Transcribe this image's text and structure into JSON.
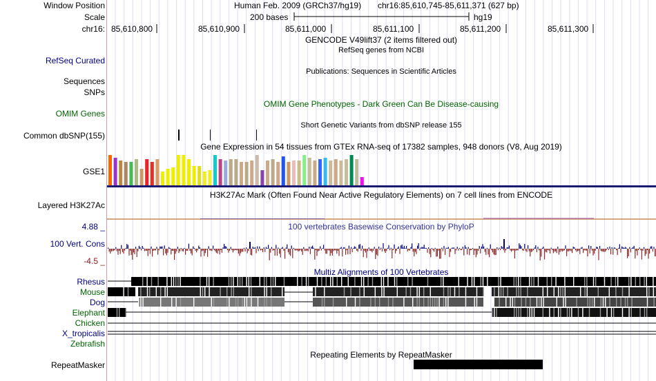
{
  "labels": {
    "window_position": "Window Position",
    "scale": "Scale",
    "chrom": "chr16:",
    "refseq": "RefSeq Curated",
    "sequences": "Sequences",
    "snps": "SNPs",
    "omim": "OMIM Genes",
    "dbsnp": "Common dbSNP(155)",
    "gse1": "GSE1",
    "h3k27ac": "Layered H3K27Ac",
    "cons_max": "4.88 _",
    "cons_label": "100 Vert. Cons",
    "cons_min": "-4.5 _"
  },
  "header": {
    "assembly": "Human Feb. 2009 (GRCh37/hg19)",
    "position": "chr16:85,610,745-85,611,371 (627 bp)",
    "scale_text": "200 bases",
    "scale_db": "hg19"
  },
  "ruler": {
    "ticks": [
      "85,610,800",
      "85,610,900",
      "85,611,000",
      "85,611,100",
      "85,611,200",
      "85,611,300"
    ]
  },
  "tracks": {
    "gencode": "GENCODE V49lift37 (2 items filtered out)",
    "refseq": "RefSeq genes from NCBI",
    "publications": "Publications: Sequences in Scientific Articles",
    "omim": "OMIM Gene Phenotypes - Dark Green Can Be Disease-causing",
    "dbsnp": "Short Genetic Variants from dbSNP release 155",
    "gtex": "Gene Expression in 54 tissues from GTEx RNA-seq of 17382 samples, 948 donors (V8, Aug 2019)",
    "h3k27ac": "H3K27Ac Mark (Often Found Near Active Regulatory Elements) on 7 cell lines from ENCODE",
    "phylop": "100 vertebrates Basewise Conservation by PhyloP",
    "multiz": "Multiz Alignments of 100 Vertebrates",
    "repeatmasker_title": "Repeating Elements by RepeatMasker",
    "repeatmasker_label": "RepeatMasker"
  },
  "species": [
    {
      "name": "Rhesus",
      "color": "#000080"
    },
    {
      "name": "Mouse",
      "color": "#006400"
    },
    {
      "name": "Dog",
      "color": "#000080"
    },
    {
      "name": "Elephant",
      "color": "#006400"
    },
    {
      "name": "Chicken",
      "color": "#006400"
    },
    {
      "name": "X_tropicalis",
      "color": "#000080"
    },
    {
      "name": "Zebrafish",
      "color": "#006400"
    }
  ],
  "gtex_colors": [
    "#ff6600",
    "#9933cc",
    "#bb8844",
    "#aa8866",
    "#44bb55",
    "#aabb88",
    "#cc9966",
    "#ee2222",
    "#dd3322",
    "#dd9966",
    "#eeee00",
    "#eeee00",
    "#eeee00",
    "#eeee00",
    "#eeee00",
    "#eeee00",
    "#eeee00",
    "#dddd22",
    "#eeee22",
    "#eeee22",
    "#11cccc",
    "#bb4488",
    "#99aadd",
    "#bbaa88",
    "#bbaa88",
    "#ccaa88",
    "#bbaa88",
    "#ccaa88",
    "#ccbbaa",
    "#8844aa",
    "#ccaa88",
    "#bbaa88",
    "#ccaa88",
    "#2255ee",
    "#cc9966",
    "#eebbbb",
    "#ccbb88",
    "#88ee88",
    "#ccbb99",
    "#ccaa88",
    "#3366ff",
    "#33bbee",
    "#ccbb99",
    "#ccaa88",
    "#ccbb99",
    "#ccbb99",
    "#008855",
    "#bbbb99",
    "#ee11ee"
  ],
  "colors": {
    "accent_navy": "#000080",
    "omim_green": "#006400",
    "cons_pos": "#000080",
    "cons_neg": "#8b2a2a"
  }
}
